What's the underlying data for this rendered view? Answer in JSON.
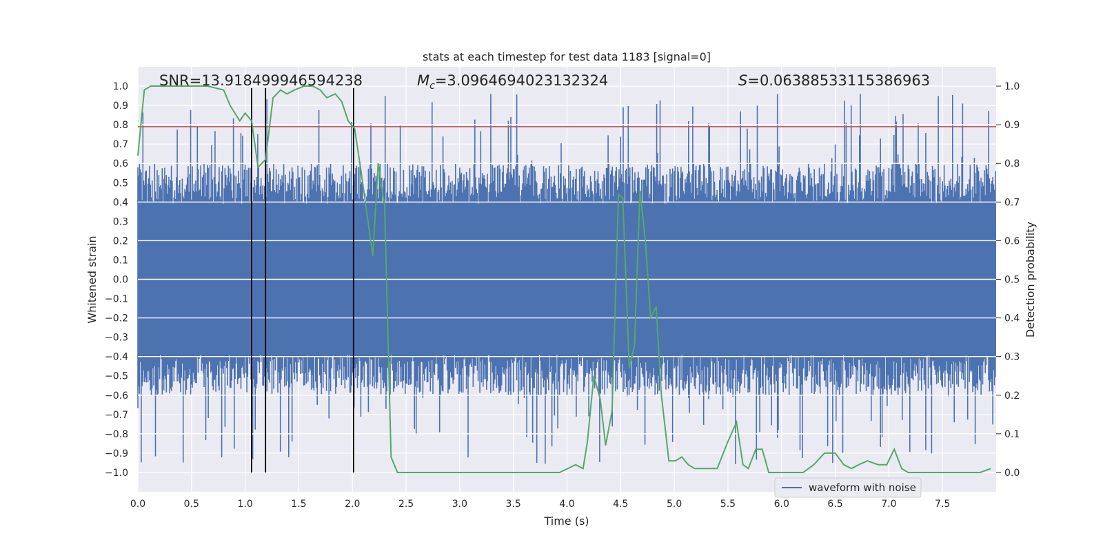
{
  "chart_data": {
    "type": "line",
    "title": "stats at each timestep for test data 1183 [signal=0]",
    "xlabel": "Time (s)",
    "ylabel_left": "Whitened strain",
    "ylabel_right": "Detection probability",
    "xlim": [
      0.0,
      8.0
    ],
    "ylim_left": [
      -1.1,
      1.1
    ],
    "ylim_right": [
      -0.05,
      1.05
    ],
    "xticks": [
      "0.0",
      "0.5",
      "1.0",
      "1.5",
      "2.0",
      "2.5",
      "3.0",
      "3.5",
      "4.0",
      "4.5",
      "5.0",
      "5.5",
      "6.0",
      "6.5",
      "7.0",
      "7.5"
    ],
    "yticks_left": [
      "1.0",
      "0.9",
      "0.8",
      "0.7",
      "0.6",
      "0.5",
      "0.4",
      "0.3",
      "0.2",
      "0.1",
      "0.0",
      "-0.1",
      "-0.2",
      "-0.3",
      "-0.4",
      "-0.5",
      "-0.6",
      "-0.7",
      "-0.8",
      "-0.9",
      "-1.0"
    ],
    "yticks_right": [
      "1.0",
      "0.9",
      "0.8",
      "0.7",
      "0.6",
      "0.5",
      "0.4",
      "0.3",
      "0.2",
      "0.1",
      "0.0"
    ],
    "grid": true,
    "annotations": {
      "snr": "SNR=13.918499946594238",
      "mc_symbol": "M",
      "mc_sub": "c",
      "mc_value": "=3.0964694023132324",
      "s_symbol": "S",
      "s_value": "=0.06388533115386963"
    },
    "threshold_line": {
      "y": 0.79,
      "color": "#c44e52"
    },
    "vertical_markers": {
      "x": [
        1.06,
        1.19,
        2.01
      ],
      "y_range": [
        -1.0,
        0.99
      ],
      "color": "#000000"
    },
    "waveform": {
      "name": "waveform with noise",
      "color": "#4c72b0",
      "samples_per_second": 128,
      "core_amplitude": 0.39,
      "typical_peak": 0.6,
      "max_peak": 0.96,
      "min_trough": -0.96
    },
    "detection_probability": {
      "color": "#55a868",
      "x": [
        0.0,
        0.06,
        0.12,
        0.3,
        0.5,
        0.65,
        0.8,
        0.86,
        0.95,
        1.0,
        1.06,
        1.12,
        1.19,
        1.26,
        1.33,
        1.39,
        1.46,
        1.55,
        1.63,
        1.7,
        1.76,
        1.84,
        1.9,
        1.96,
        2.02,
        2.08,
        2.13,
        2.19,
        2.24,
        2.3,
        2.36,
        2.42,
        2.48,
        2.6,
        2.7,
        2.8,
        3.0,
        3.2,
        3.4,
        3.6,
        3.8,
        3.93,
        4.08,
        4.15,
        4.19,
        4.25,
        4.31,
        4.36,
        4.42,
        4.48,
        4.52,
        4.58,
        4.63,
        4.68,
        4.73,
        4.78,
        4.83,
        4.88,
        4.95,
        5.01,
        5.07,
        5.13,
        5.19,
        5.25,
        5.32,
        5.4,
        5.5,
        5.58,
        5.64,
        5.69,
        5.76,
        5.82,
        5.88,
        5.95,
        6.02,
        6.1,
        6.2,
        6.3,
        6.4,
        6.5,
        6.58,
        6.65,
        6.72,
        6.8,
        6.9,
        6.98,
        7.05,
        7.12,
        7.18,
        7.25,
        7.35,
        7.5,
        7.7,
        7.85,
        7.95
      ],
      "y": [
        0.82,
        0.99,
        1.0,
        1.0,
        1.0,
        1.0,
        0.99,
        0.95,
        0.91,
        0.93,
        0.91,
        0.79,
        0.81,
        0.97,
        0.99,
        0.98,
        0.99,
        1.0,
        1.0,
        0.99,
        0.97,
        0.98,
        0.96,
        0.91,
        0.89,
        0.78,
        0.68,
        0.56,
        0.8,
        0.69,
        0.04,
        0.0,
        0.0,
        0.0,
        0.0,
        0.0,
        0.0,
        0.0,
        0.0,
        0.0,
        0.0,
        0.0,
        0.02,
        0.01,
        0.08,
        0.25,
        0.19,
        0.07,
        0.16,
        0.72,
        0.71,
        0.27,
        0.33,
        0.73,
        0.6,
        0.4,
        0.43,
        0.2,
        0.03,
        0.03,
        0.04,
        0.02,
        0.01,
        0.01,
        0.01,
        0.01,
        0.08,
        0.13,
        0.02,
        0.01,
        0.06,
        0.06,
        0.0,
        0.0,
        0.0,
        0.0,
        0.0,
        0.02,
        0.05,
        0.05,
        0.02,
        0.01,
        0.02,
        0.03,
        0.02,
        0.02,
        0.06,
        0.01,
        0.0,
        0.0,
        0.0,
        0.0,
        0.0,
        0.0,
        0.01
      ]
    },
    "legend": {
      "label": "waveform with noise",
      "placement": "lower-right"
    }
  }
}
